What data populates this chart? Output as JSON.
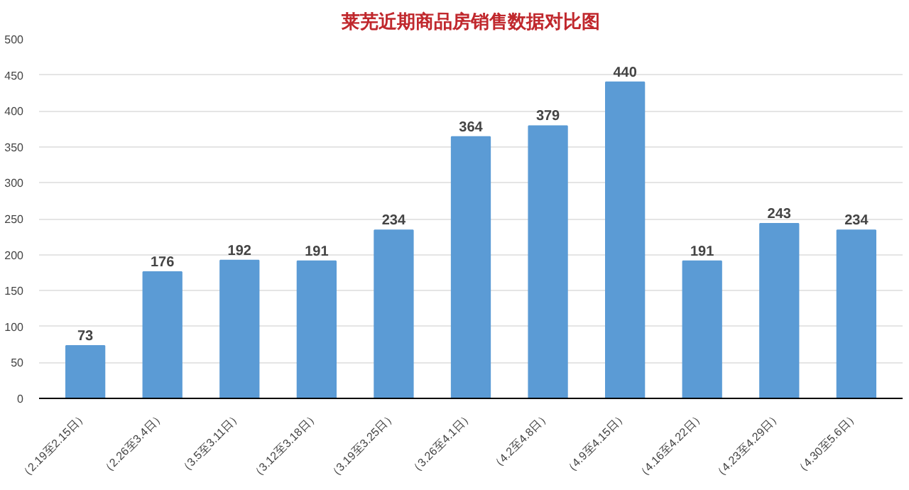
{
  "chart_data": {
    "type": "bar",
    "title": "莱芜近期商品房销售数据对比图",
    "categories": [
      "（2.19至2.15日）",
      "（2.26至3.4日）",
      "（3.5至3.11日）",
      "（3.12至3.18日）",
      "（3.19至3.25日）",
      "（3.26至4.1日）",
      "（4.2至4.8日）",
      "（4.9至4.15日）",
      "（4.16至4.22日）",
      "（4.23至4.29日）",
      "（4.30至5.6日）"
    ],
    "values": [
      73,
      176,
      192,
      191,
      234,
      364,
      379,
      440,
      191,
      243,
      234
    ],
    "color": "#5b9bd5",
    "ylim": [
      0,
      500
    ],
    "yticks": [
      0,
      50,
      100,
      150,
      200,
      250,
      300,
      350,
      400,
      450,
      500
    ],
    "grid": "y",
    "data_labels": true
  }
}
